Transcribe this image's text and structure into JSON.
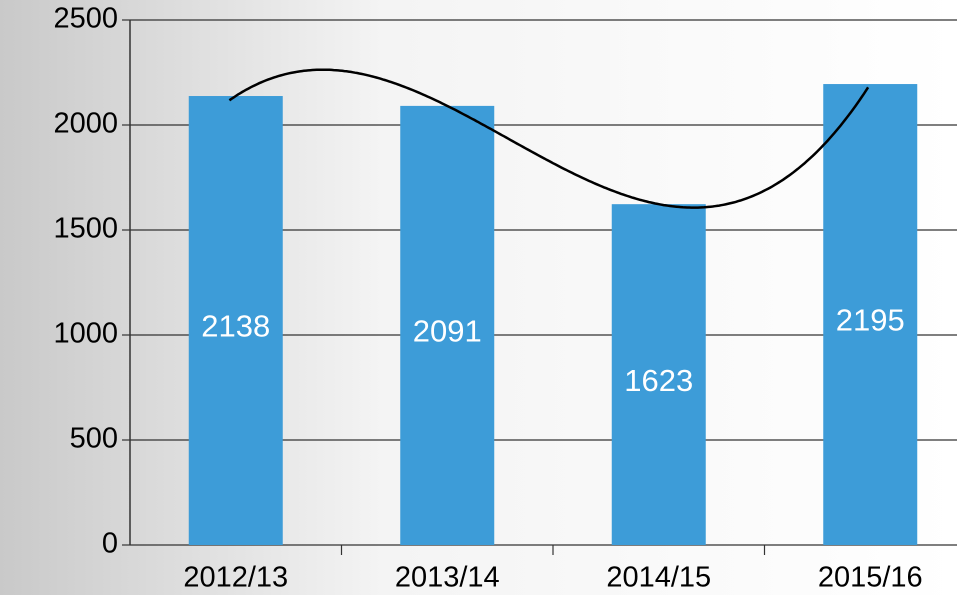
{
  "chart_data": {
    "type": "bar",
    "categories": [
      "2012/13",
      "2013/14",
      "2014/15",
      "2015/16"
    ],
    "values": [
      2138,
      2091,
      1623,
      2195
    ],
    "color": "#3d9cd8",
    "ylim": [
      0,
      2500
    ],
    "yticks": [
      0,
      500,
      1000,
      1500,
      2000,
      2500
    ],
    "grid": true,
    "trendline": "polynomial"
  }
}
